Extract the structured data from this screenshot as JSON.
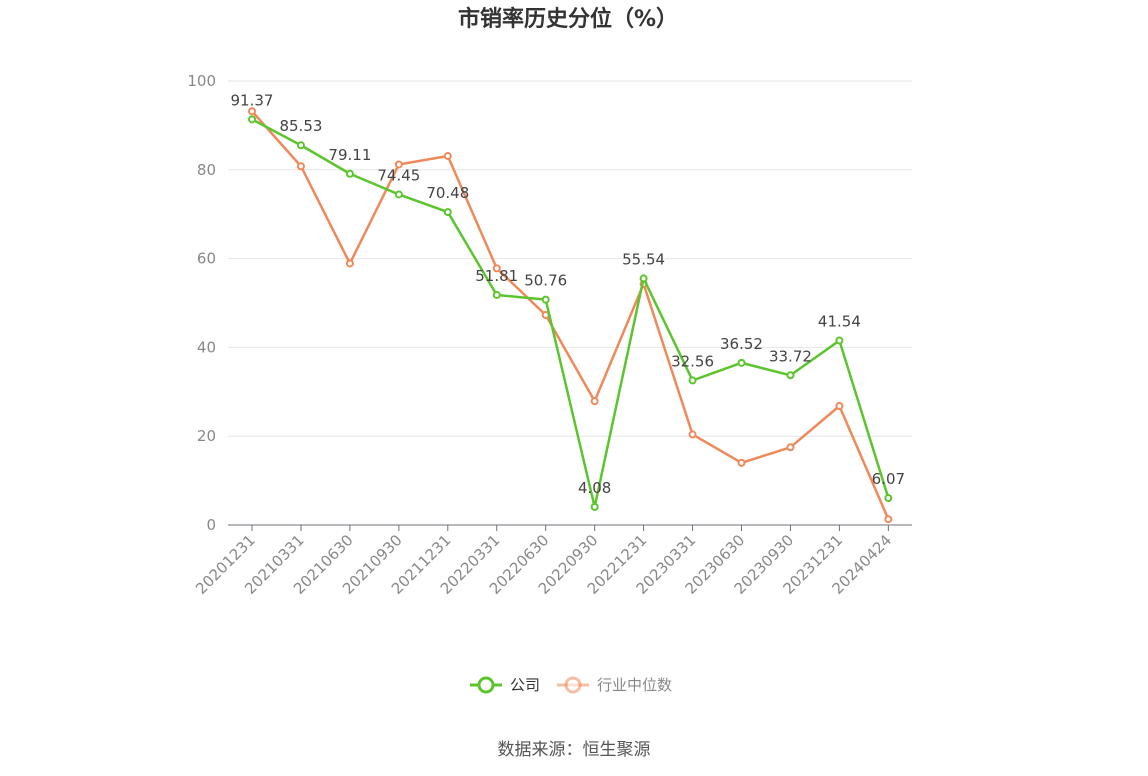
{
  "chart_data": {
    "type": "line",
    "title": "市销率历史分位（%）",
    "categories": [
      "20201231",
      "20210331",
      "20210630",
      "20210930",
      "20211231",
      "20220331",
      "20220630",
      "20220930",
      "20221231",
      "20230331",
      "20230630",
      "20230930",
      "20231231",
      "20240424"
    ],
    "ylim": [
      0,
      100
    ],
    "yticks": [
      0,
      20,
      40,
      60,
      80,
      100
    ],
    "grid": true,
    "legend_position": "bottom",
    "series": [
      {
        "name": "公司",
        "color": "#5cc52e",
        "values": [
          91.37,
          85.53,
          79.11,
          74.45,
          70.48,
          51.81,
          50.76,
          4.08,
          55.54,
          32.56,
          36.52,
          33.72,
          41.54,
          6.07
        ],
        "labels": [
          "91.37",
          "85.53",
          "79.11",
          "74.45",
          "70.48",
          "51.81",
          "50.76",
          "4.08",
          "55.54",
          "32.56",
          "36.52",
          "33.72",
          "41.54",
          "6.07"
        ]
      },
      {
        "name": "行业中位数",
        "color": "#f0895a",
        "values": [
          93.2,
          80.8,
          58.9,
          81.2,
          83.1,
          57.8,
          47.3,
          27.9,
          54.3,
          20.4,
          14.0,
          17.5,
          26.8,
          1.3
        ]
      }
    ]
  },
  "footer": {
    "source": "数据来源：恒生聚源"
  }
}
